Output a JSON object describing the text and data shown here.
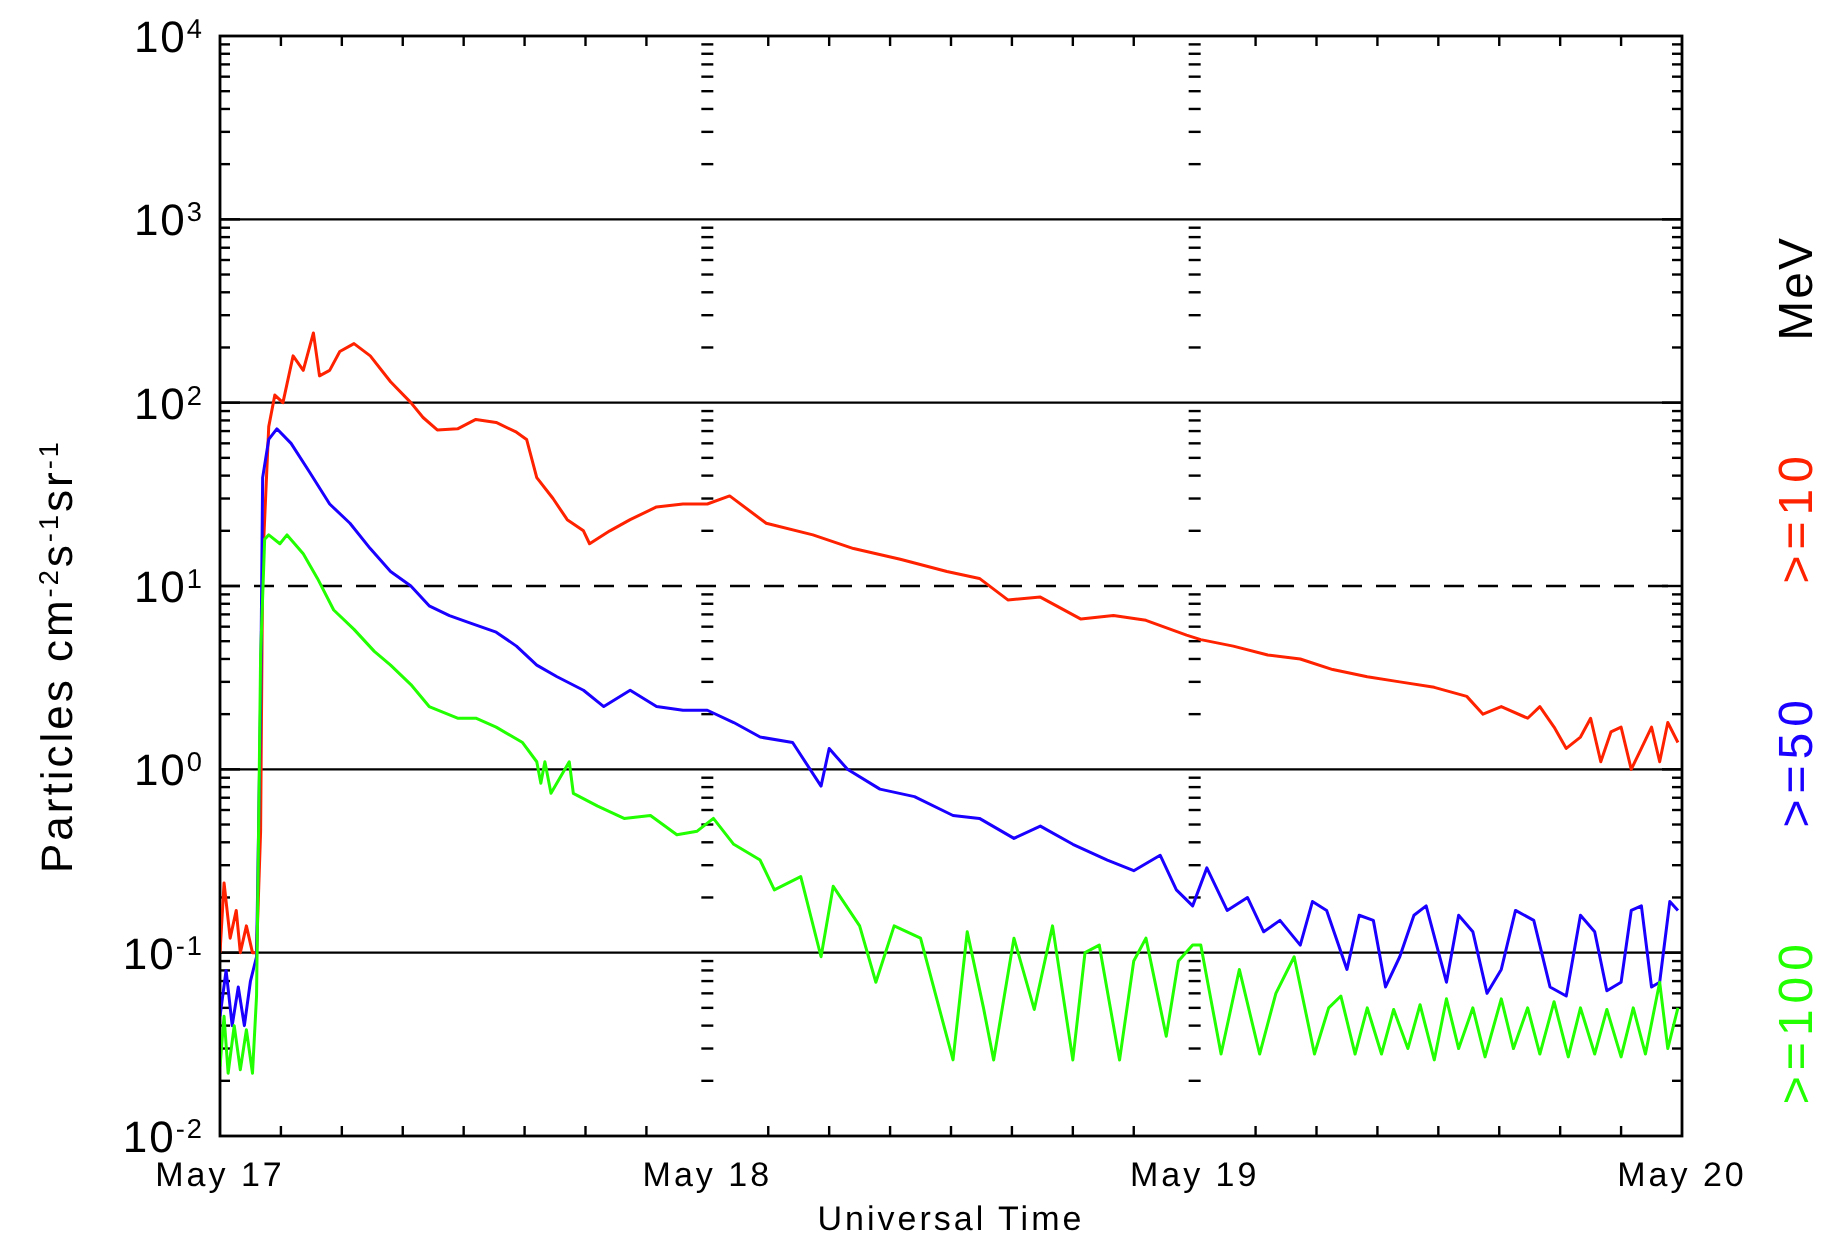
{
  "chart_data": {
    "type": "line",
    "xlabel": "Universal Time",
    "ylabel": "Particles cm$^{-2}$s$^{-1}$sr$^{-1}$",
    "legend_title": "MeV",
    "legend": "right",
    "log": true,
    "grid": "y",
    "marker": "none",
    "xlim": [
      "--05-17",
      "--05-20"
    ],
    "xticks": [
      {
        "value": "--05-17",
        "label": "May 17"
      },
      {
        "value": "--05-18",
        "label": "May 18"
      },
      {
        "value": "--05-19",
        "label": "May 19"
      },
      {
        "value": "--05-20",
        "label": "May 20"
      }
    ],
    "ylim": [
      0.01,
      10000
    ],
    "yticks": [
      {
        "value": 0.01,
        "label": "10$^{-2}$"
      },
      {
        "value": 0.1,
        "label": "10$^{-1}$"
      },
      {
        "value": 1,
        "label": "10$^{0}$"
      },
      {
        "value": 10,
        "label": "10$^{1}$"
      },
      {
        "value": 100,
        "label": "10$^{2}$"
      },
      {
        "value": 1000,
        "label": "10$^{3}$"
      },
      {
        "value": 10000,
        "label": "10$^{4}$"
      }
    ],
    "ref_lines": [
      {
        "axis": "y",
        "value": 10,
        "line_style": "dashed",
        "color": "#000000"
      }
    ],
    "series": [
      {
        "name": ">=10",
        "color": "#ff2200",
        "x": [
          "--05-17T00:00",
          "--05-17T00:12",
          "--05-17T00:30",
          "--05-17T00:48",
          "--05-17T01:00",
          "--05-17T01:18",
          "--05-17T01:36",
          "--05-17T01:48",
          "--05-17T02:00",
          "--05-17T02:06",
          "--05-17T02:24",
          "--05-17T02:42",
          "--05-17T03:06",
          "--05-17T03:36",
          "--05-17T04:06",
          "--05-17T04:36",
          "--05-17T04:54",
          "--05-17T05:24",
          "--05-17T05:54",
          "--05-17T06:36",
          "--05-17T07:24",
          "--05-17T08:24",
          "--05-17T09:24",
          "--05-17T10:00",
          "--05-17T10:42",
          "--05-17T11:42",
          "--05-17T12:36",
          "--05-17T13:36",
          "--05-17T14:36",
          "--05-17T15:06",
          "--05-17T15:36",
          "--05-17T16:24",
          "--05-17T17:06",
          "--05-17T17:54",
          "--05-17T18:12",
          "--05-17T19:12",
          "--05-17T20:12",
          "--05-17T21:30",
          "--05-17T22:48",
          "--05-18T00:00",
          "--05-18T01:06",
          "--05-18T02:54",
          "--05-18T05:12",
          "--05-18T07:12",
          "--05-18T09:30",
          "--05-18T11:48",
          "--05-18T13:24",
          "--05-18T14:48",
          "--05-18T16:24",
          "--05-18T18:24",
          "--05-18T20:00",
          "--05-18T21:36",
          "--05-18T23:36",
          "--05-19T00:18",
          "--05-19T01:54",
          "--05-19T03:36",
          "--05-19T05:12",
          "--05-19T06:48",
          "--05-19T08:30",
          "--05-19T10:06",
          "--05-19T11:48",
          "--05-19T13:24",
          "--05-19T14:12",
          "--05-19T15:06",
          "--05-19T16:24",
          "--05-19T17:00",
          "--05-19T17:42",
          "--05-19T18:18",
          "--05-19T19:00",
          "--05-19T19:30",
          "--05-19T20:00",
          "--05-19T20:30",
          "--05-19T21:00",
          "--05-19T21:30",
          "--05-19T22:00",
          "--05-19T22:30",
          "--05-19T22:54",
          "--05-19T23:18",
          "--05-19T23:48"
        ],
        "values": [
          0.1,
          0.24,
          0.12,
          0.17,
          0.1,
          0.14,
          0.1,
          0.1,
          0.46,
          13,
          74,
          110,
          100,
          180,
          150,
          240,
          140,
          150,
          190,
          210,
          180,
          130,
          100,
          83,
          71,
          72,
          81,
          78,
          69,
          63,
          39,
          30,
          23,
          20,
          17,
          20,
          23,
          27,
          28,
          28,
          31,
          22,
          19,
          16,
          14,
          12,
          11,
          8.4,
          8.7,
          6.6,
          6.9,
          6.5,
          5.4,
          5.1,
          4.7,
          4.2,
          4.0,
          3.5,
          3.2,
          3.0,
          2.8,
          2.5,
          2.0,
          2.2,
          1.9,
          2.2,
          1.7,
          1.3,
          1.5,
          1.9,
          1.1,
          1.6,
          1.7,
          1.0,
          1.3,
          1.7,
          1.1,
          1.8,
          1.4
        ]
      },
      {
        "name": ">=50",
        "color": "#1a00ff",
        "x": [
          "--05-17T00:00",
          "--05-17T00:18",
          "--05-17T00:36",
          "--05-17T00:54",
          "--05-17T01:12",
          "--05-17T01:30",
          "--05-17T01:48",
          "--05-17T02:00",
          "--05-17T02:06",
          "--05-17T02:24",
          "--05-17T02:48",
          "--05-17T03:30",
          "--05-17T04:24",
          "--05-17T05:24",
          "--05-17T06:24",
          "--05-17T07:24",
          "--05-17T08:24",
          "--05-17T09:24",
          "--05-17T10:18",
          "--05-17T11:18",
          "--05-17T12:18",
          "--05-17T13:36",
          "--05-17T14:36",
          "--05-17T15:36",
          "--05-17T16:36",
          "--05-17T17:54",
          "--05-17T18:54",
          "--05-17T20:12",
          "--05-17T21:30",
          "--05-17T22:48",
          "--05-18T00:00",
          "--05-18T01:18",
          "--05-18T02:36",
          "--05-18T04:12",
          "--05-18T05:36",
          "--05-18T06:00",
          "--05-18T06:54",
          "--05-18T08:30",
          "--05-18T10:12",
          "--05-18T12:06",
          "--05-18T13:24",
          "--05-18T15:06",
          "--05-18T16:24",
          "--05-18T18:00",
          "--05-18T19:42",
          "--05-18T21:00",
          "--05-18T22:18",
          "--05-18T23:06",
          "--05-18T23:54",
          "--05-19T00:36",
          "--05-19T01:36",
          "--05-19T02:36",
          "--05-19T03:24",
          "--05-19T04:12",
          "--05-19T05:12",
          "--05-19T05:48",
          "--05-19T06:30",
          "--05-19T07:30",
          "--05-19T08:06",
          "--05-19T08:48",
          "--05-19T09:24",
          "--05-19T10:06",
          "--05-19T10:48",
          "--05-19T11:24",
          "--05-19T12:24",
          "--05-19T13:00",
          "--05-19T13:42",
          "--05-19T14:24",
          "--05-19T15:06",
          "--05-19T15:48",
          "--05-19T16:42",
          "--05-19T17:30",
          "--05-19T18:18",
          "--05-19T19:00",
          "--05-19T19:42",
          "--05-19T20:18",
          "--05-19T21:00",
          "--05-19T21:30",
          "--05-19T22:00",
          "--05-19T22:30",
          "--05-19T22:54",
          "--05-19T23:24",
          "--05-19T23:48"
        ],
        "values": [
          0.045,
          0.08,
          0.04,
          0.065,
          0.04,
          0.07,
          0.095,
          2.3,
          39,
          63,
          72,
          60,
          42,
          28,
          22,
          16,
          12,
          10,
          7.8,
          6.9,
          6.3,
          5.6,
          4.7,
          3.7,
          3.2,
          2.7,
          2.2,
          2.7,
          2.2,
          2.1,
          2.1,
          1.8,
          1.5,
          1.4,
          0.81,
          1.3,
          1.0,
          0.78,
          0.71,
          0.56,
          0.54,
          0.42,
          0.49,
          0.39,
          0.32,
          0.28,
          0.34,
          0.22,
          0.18,
          0.29,
          0.17,
          0.2,
          0.13,
          0.15,
          0.11,
          0.19,
          0.17,
          0.081,
          0.16,
          0.15,
          0.065,
          0.095,
          0.16,
          0.18,
          0.069,
          0.16,
          0.13,
          0.06,
          0.081,
          0.17,
          0.15,
          0.065,
          0.058,
          0.16,
          0.13,
          0.062,
          0.069,
          0.17,
          0.18,
          0.065,
          0.069,
          0.19,
          0.17
        ]
      },
      {
        "name": ">=100",
        "color": "#22ff00",
        "x": [
          "--05-17T00:00",
          "--05-17T00:12",
          "--05-17T00:24",
          "--05-17T00:42",
          "--05-17T01:00",
          "--05-17T01:18",
          "--05-17T01:36",
          "--05-17T01:48",
          "--05-17T01:54",
          "--05-17T02:00",
          "--05-17T02:12",
          "--05-17T02:24",
          "--05-17T02:57",
          "--05-17T03:18",
          "--05-17T04:06",
          "--05-17T04:48",
          "--05-17T05:36",
          "--05-17T06:36",
          "--05-17T07:36",
          "--05-17T08:24",
          "--05-17T09:24",
          "--05-17T10:18",
          "--05-17T11:42",
          "--05-17T12:36",
          "--05-17T13:36",
          "--05-17T14:54",
          "--05-17T15:36",
          "--05-17T15:48",
          "--05-17T16:00",
          "--05-17T16:18",
          "--05-17T17:12",
          "--05-17T17:24",
          "--05-17T18:36",
          "--05-17T19:54",
          "--05-17T21:12",
          "--05-17T22:30",
          "--05-17T23:30",
          "--05-18T00:18",
          "--05-18T01:18",
          "--05-18T02:36",
          "--05-18T03:18",
          "--05-18T04:36",
          "--05-18T05:36",
          "--05-18T06:12",
          "--05-18T07:30",
          "--05-18T08:18",
          "--05-18T09:12",
          "--05-18T10:30",
          "--05-18T12:06",
          "--05-18T12:48",
          "--05-18T13:36",
          "--05-18T14:06",
          "--05-18T15:06",
          "--05-18T16:06",
          "--05-18T17:00",
          "--05-18T18:00",
          "--05-18T18:36",
          "--05-18T19:18",
          "--05-18T20:18",
          "--05-18T21:00",
          "--05-18T21:36",
          "--05-18T22:36",
          "--05-18T23:12",
          "--05-18T23:54",
          "--05-19T00:18",
          "--05-19T01:18",
          "--05-19T02:12",
          "--05-19T03:12",
          "--05-19T04:00",
          "--05-19T04:54",
          "--05-19T05:54",
          "--05-19T06:36",
          "--05-19T07:12",
          "--05-19T07:54",
          "--05-19T08:30",
          "--05-19T09:12",
          "--05-19T09:48",
          "--05-19T10:30",
          "--05-19T11:06",
          "--05-19T11:48",
          "--05-19T12:24",
          "--05-19T13:00",
          "--05-19T13:42",
          "--05-19T14:18",
          "--05-19T15:06",
          "--05-19T15:42",
          "--05-19T16:24",
          "--05-19T17:00",
          "--05-19T17:42",
          "--05-19T18:24",
          "--05-19T19:00",
          "--05-19T19:42",
          "--05-19T20:18",
          "--05-19T21:00",
          "--05-19T21:36",
          "--05-19T22:12",
          "--05-19T22:54",
          "--05-19T23:18",
          "--05-19T23:48"
        ],
        "values": [
          0.024,
          0.045,
          0.022,
          0.04,
          0.023,
          0.038,
          0.022,
          0.058,
          0.46,
          4.2,
          18,
          19,
          17,
          19,
          15,
          11,
          7.4,
          5.8,
          4.4,
          3.7,
          2.9,
          2.2,
          1.9,
          1.9,
          1.7,
          1.4,
          1.1,
          0.84,
          1.1,
          0.74,
          1.1,
          0.74,
          0.63,
          0.54,
          0.56,
          0.44,
          0.46,
          0.54,
          0.39,
          0.32,
          0.22,
          0.26,
          0.095,
          0.23,
          0.14,
          0.069,
          0.14,
          0.12,
          0.026,
          0.13,
          0.05,
          0.026,
          0.12,
          0.049,
          0.14,
          0.026,
          0.1,
          0.11,
          0.026,
          0.09,
          0.12,
          0.035,
          0.09,
          0.11,
          0.11,
          0.028,
          0.081,
          0.028,
          0.06,
          0.095,
          0.028,
          0.05,
          0.058,
          0.028,
          0.05,
          0.028,
          0.049,
          0.03,
          0.052,
          0.026,
          0.056,
          0.03,
          0.05,
          0.027,
          0.056,
          0.03,
          0.05,
          0.028,
          0.054,
          0.027,
          0.05,
          0.028,
          0.049,
          0.027,
          0.05,
          0.028,
          0.069,
          0.03,
          0.05
        ]
      }
    ]
  }
}
